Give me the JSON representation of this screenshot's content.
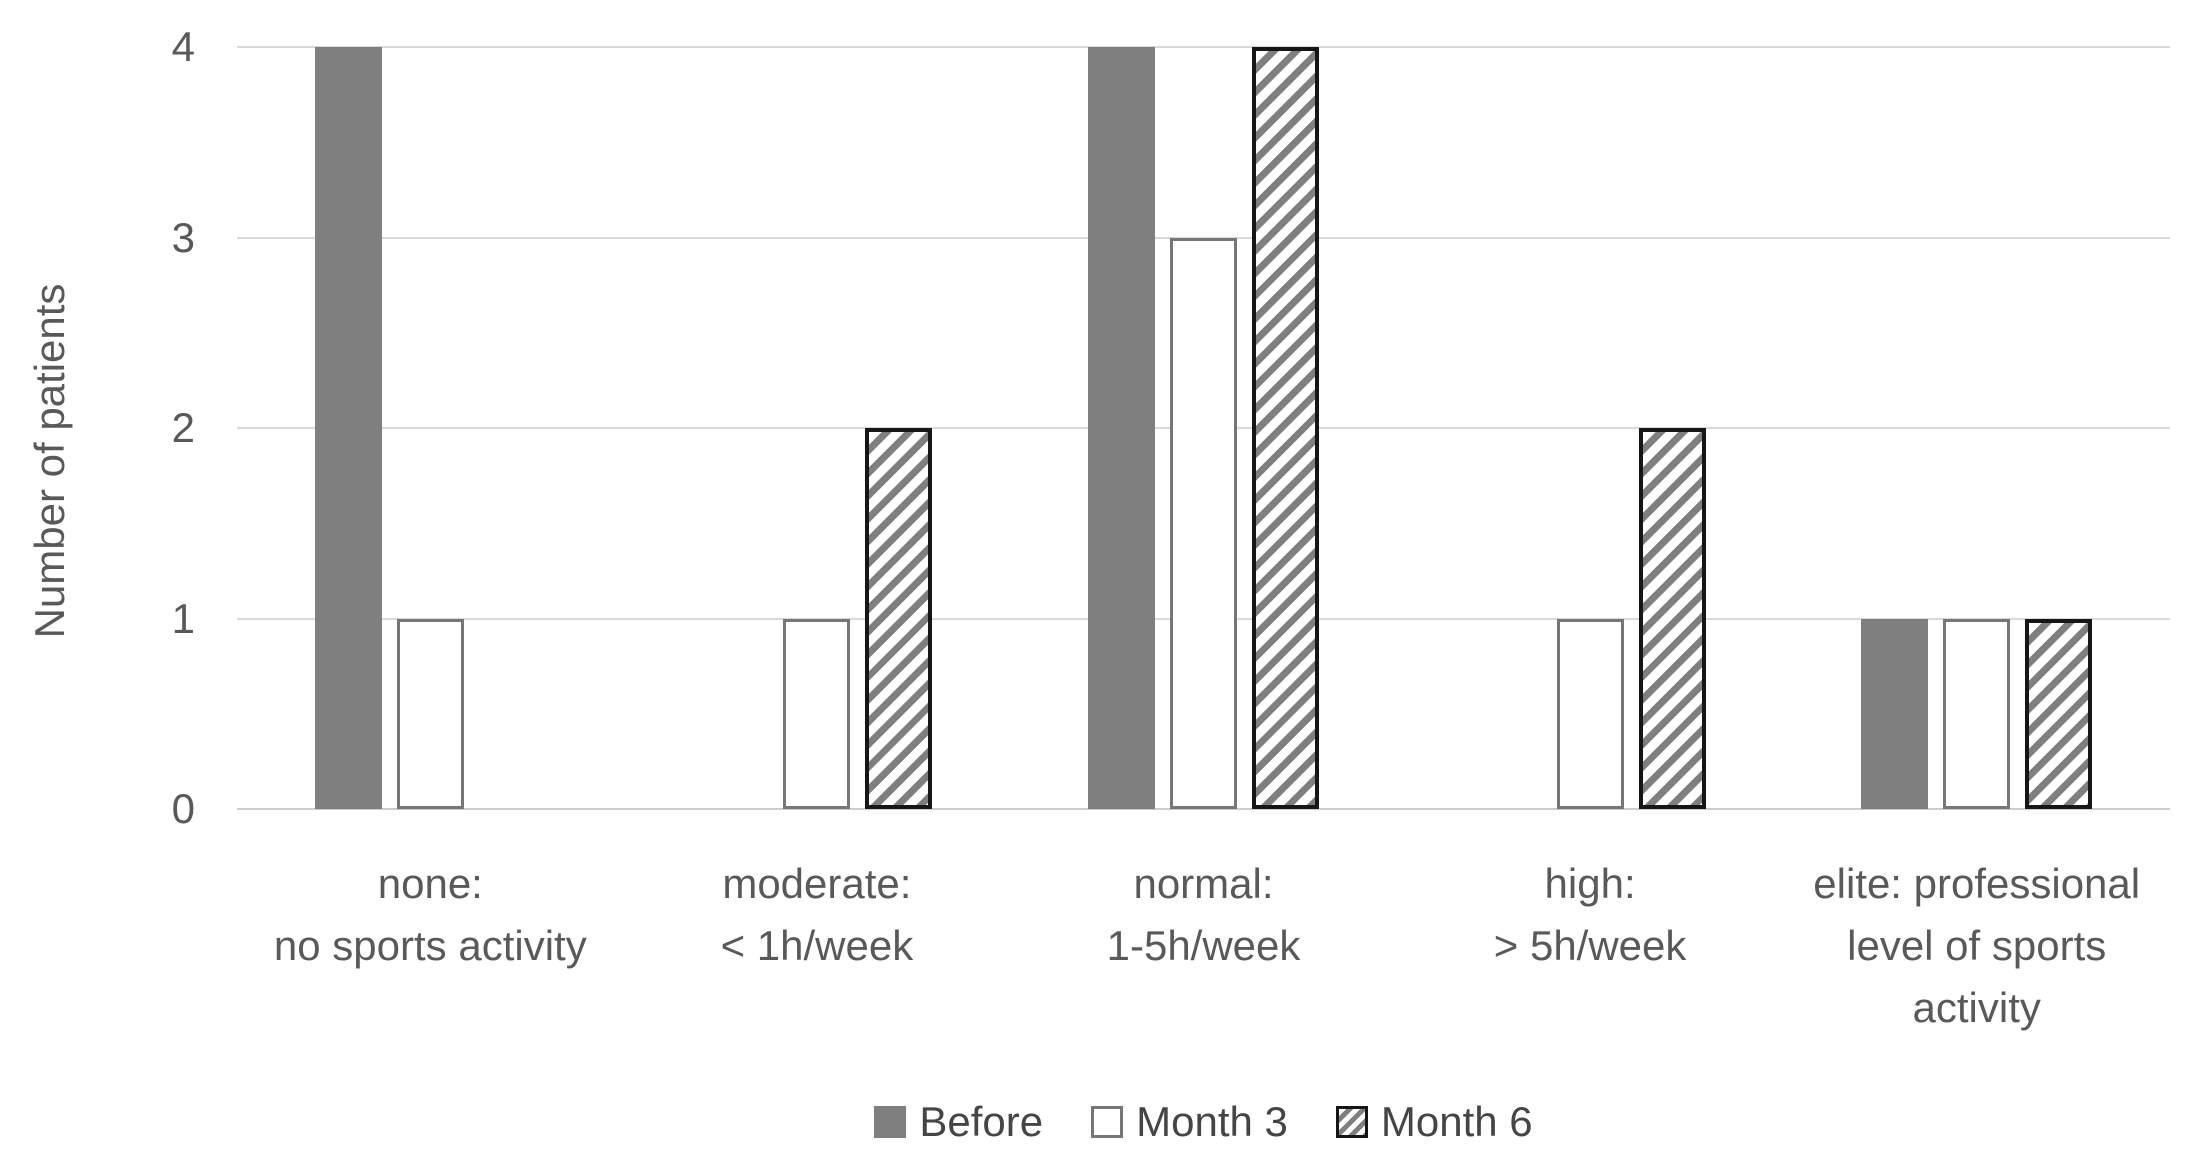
{
  "chart_data": {
    "type": "bar",
    "title": "",
    "ylabel": "Number of patients",
    "xlabel": "",
    "ylim": [
      0,
      4
    ],
    "yticks": [
      0,
      1,
      2,
      3,
      4
    ],
    "grid": true,
    "legend_position": "bottom",
    "categories": [
      [
        "none:",
        "no sports activity"
      ],
      [
        "moderate:",
        "< 1h/week"
      ],
      [
        "normal:",
        "1-5h/week"
      ],
      [
        "high:",
        "> 5h/week"
      ],
      [
        "elite: professional",
        "level of sports",
        "activity"
      ]
    ],
    "series": [
      {
        "name": "Before",
        "key": "before",
        "values": [
          4,
          0,
          4,
          0,
          1
        ]
      },
      {
        "name": "Month 3",
        "key": "month3",
        "values": [
          1,
          1,
          3,
          1,
          1
        ]
      },
      {
        "name": "Month 6",
        "key": "month6",
        "values": [
          0,
          2,
          4,
          2,
          1
        ]
      }
    ]
  },
  "colors": {
    "bar_solid": "#7f7f7f",
    "bar_outline": "#767676",
    "hatch_stripe": "#7f7f7f",
    "hatch_border": "#161616",
    "gridline": "#d9d9d9",
    "axis_line": "#cccccc",
    "axis_text": "#595959",
    "legend_text": "#454545"
  }
}
